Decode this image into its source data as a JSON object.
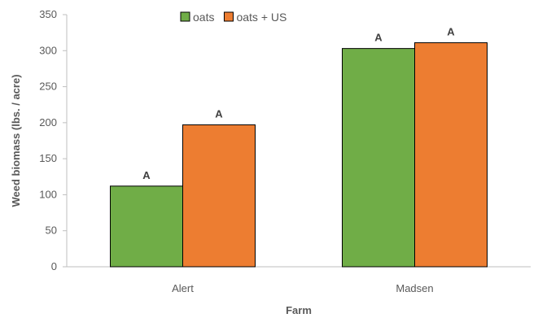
{
  "chart_data": {
    "type": "bar",
    "categories": [
      "Alert",
      "Madsen"
    ],
    "series": [
      {
        "name": "oats",
        "color": "#70ad47",
        "values": [
          112,
          303
        ],
        "labels": [
          "A",
          "A"
        ]
      },
      {
        "name": "oats + US",
        "color": "#ed7d31",
        "values": [
          197,
          311
        ],
        "labels": [
          "A",
          "A"
        ]
      }
    ],
    "xlabel": "Farm",
    "ylabel": "Weed biomass (lbs. / acre)",
    "ylim": [
      0,
      350
    ],
    "yticks": [
      "0",
      "50",
      "100",
      "150",
      "200",
      "250",
      "300",
      "350"
    ],
    "grid": false,
    "legend_position": "top-center"
  }
}
